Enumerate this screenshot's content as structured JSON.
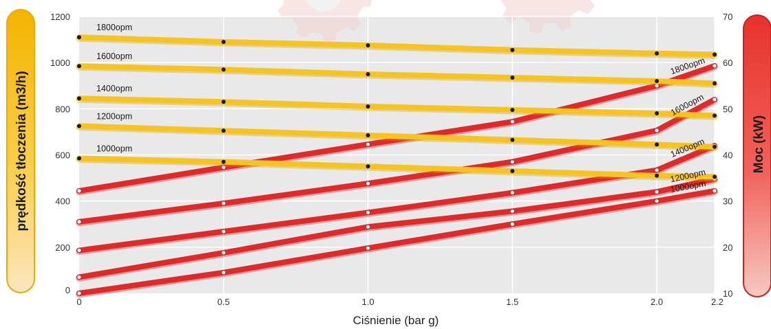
{
  "chart_data": {
    "type": "line",
    "title": "",
    "xlabel": "Ciśnienie (bar g)",
    "ylabel_left": "prędkość tłoczenia (m3/h)",
    "ylabel_right": "Moc (kW)",
    "x_ticks": [
      "0",
      "0.5",
      "1.0",
      "1.5",
      "2.0",
      "2.2"
    ],
    "x_tick_values": [
      0,
      0.5,
      1.0,
      1.5,
      2.0,
      2.2
    ],
    "y_left_ticks": [
      "0",
      "200",
      "400",
      "600",
      "800",
      "1000",
      "1200"
    ],
    "y_left_tick_values": [
      0,
      200,
      400,
      600,
      800,
      1000,
      1200
    ],
    "y_right_ticks": [
      "10",
      "20",
      "30",
      "40",
      "50",
      "60",
      "70"
    ],
    "y_right_tick_values": [
      10,
      20,
      30,
      40,
      50,
      60,
      70
    ],
    "xlim": [
      0,
      2.2
    ],
    "ylim_left": [
      0,
      1200
    ],
    "ylim_right": [
      10,
      70
    ],
    "grid": true,
    "flow_series": [
      {
        "name": "1800opm",
        "axis": "left",
        "x": [
          0,
          0.5,
          1.0,
          1.5,
          2.0,
          2.2
        ],
        "values": [
          1110,
          1090,
          1075,
          1055,
          1040,
          1035
        ]
      },
      {
        "name": "1600opm",
        "axis": "left",
        "x": [
          0,
          0.5,
          1.0,
          1.5,
          2.0,
          2.2
        ],
        "values": [
          985,
          970,
          950,
          935,
          920,
          910
        ]
      },
      {
        "name": "1400opm",
        "axis": "left",
        "x": [
          0,
          0.5,
          1.0,
          1.5,
          2.0,
          2.2
        ],
        "values": [
          845,
          830,
          810,
          795,
          780,
          770
        ]
      },
      {
        "name": "1200opm",
        "axis": "left",
        "x": [
          0,
          0.5,
          1.0,
          1.5,
          2.0,
          2.2
        ],
        "values": [
          725,
          705,
          685,
          665,
          645,
          635
        ]
      },
      {
        "name": "1000opm",
        "axis": "left",
        "x": [
          0,
          0.5,
          1.0,
          1.5,
          2.0,
          2.2
        ],
        "values": [
          585,
          570,
          550,
          530,
          510,
          505
        ]
      }
    ],
    "power_series": [
      {
        "name": "1800opm",
        "axis": "right",
        "x": [
          0,
          0.5,
          1.0,
          1.5,
          2.0,
          2.2
        ],
        "values": [
          32.2,
          37.3,
          42.3,
          47.2,
          55.0,
          59.3
        ]
      },
      {
        "name": "1600opm",
        "axis": "right",
        "x": [
          0,
          0.5,
          1.0,
          1.5,
          2.0,
          2.2
        ],
        "values": [
          25.5,
          29.5,
          33.8,
          38.5,
          45.3,
          52.0
        ]
      },
      {
        "name": "1400opm",
        "axis": "right",
        "x": [
          0,
          0.5,
          1.0,
          1.5,
          2.0,
          2.2
        ],
        "values": [
          19.3,
          23.4,
          27.5,
          31.8,
          36.7,
          42.0
        ]
      },
      {
        "name": "1200opm",
        "axis": "right",
        "x": [
          0,
          0.5,
          1.0,
          1.5,
          2.0,
          2.2
        ],
        "values": [
          13.5,
          18.8,
          24.4,
          27.8,
          32.0,
          34.8
        ]
      },
      {
        "name": "1000opm",
        "axis": "right",
        "x": [
          0,
          0.5,
          1.0,
          1.5,
          2.0,
          2.2
        ],
        "values": [
          10.0,
          14.5,
          19.8,
          25.0,
          30.0,
          32.2
        ]
      }
    ],
    "colors": {
      "flow_line": "#f7c31f",
      "power_line": "#e02a2a",
      "flow_marker": "#1a1a1a",
      "power_marker": "#ffffff",
      "plot_background": "#e9e9e9",
      "grid": "#ffffff"
    }
  }
}
